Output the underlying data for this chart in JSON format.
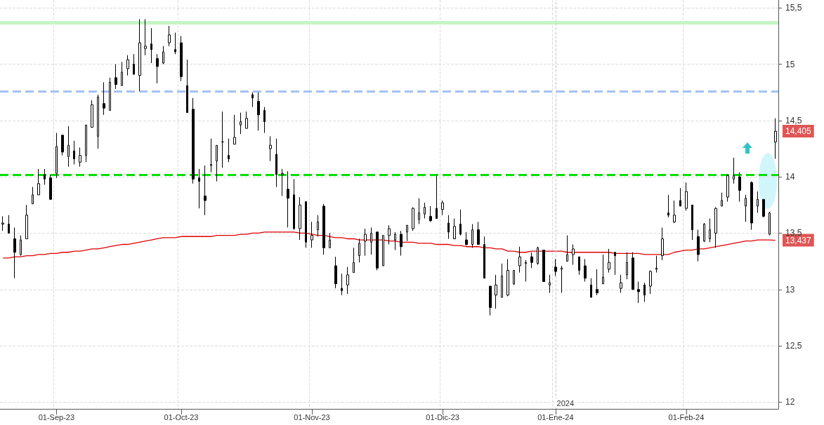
{
  "chart_data": {
    "type": "candlestick",
    "color": "#000000",
    "categories": [
      null,
      null,
      null,
      null,
      null,
      null,
      null,
      null,
      null,
      "01-Sep-23",
      null,
      null,
      null,
      null,
      null,
      null,
      null,
      null,
      null,
      null,
      null,
      null,
      null,
      null,
      null,
      null,
      null,
      null,
      null,
      null,
      "01-Oct-23",
      null,
      null,
      null,
      null,
      null,
      null,
      null,
      null,
      null,
      null,
      null,
      null,
      null,
      null,
      null,
      null,
      null,
      null,
      null,
      null,
      null,
      "01-Nov-23",
      null,
      null,
      null,
      null,
      null,
      null,
      null,
      null,
      null,
      null,
      null,
      null,
      null,
      null,
      null,
      null,
      null,
      null,
      null,
      null,
      null,
      "01-Dic-23",
      null,
      null,
      null,
      null,
      null,
      null,
      null,
      null,
      null,
      null,
      null,
      null,
      null,
      null,
      null,
      null,
      null,
      null,
      "01-Ene-24",
      null,
      null,
      null,
      null,
      null,
      null,
      null,
      null,
      null,
      null,
      null,
      null,
      null,
      null,
      null,
      null,
      null,
      null,
      null,
      null,
      null,
      "01-Feb-24",
      null,
      null,
      null,
      null,
      null,
      null,
      null,
      null,
      null,
      null,
      null,
      null,
      null,
      null,
      null
    ],
    "ohlc": [
      [
        13.58,
        13.65,
        13.52,
        13.59
      ],
      [
        13.58,
        13.66,
        13.5,
        13.5
      ],
      [
        13.45,
        13.55,
        13.1,
        13.33
      ],
      [
        13.31,
        13.48,
        13.3,
        13.44
      ],
      [
        13.45,
        13.75,
        13.45,
        13.66
      ],
      [
        13.76,
        13.91,
        13.76,
        13.84
      ],
      [
        13.84,
        14.07,
        13.84,
        13.94
      ],
      [
        14.02,
        14.07,
        13.93,
        13.98
      ],
      [
        13.99,
        14.02,
        13.8,
        13.8
      ],
      [
        14.03,
        14.39,
        13.99,
        14.27
      ],
      [
        14.37,
        14.37,
        14.19,
        14.22
      ],
      [
        14.18,
        14.45,
        14.09,
        14.28
      ],
      [
        14.23,
        14.32,
        14.11,
        14.16
      ],
      [
        14.13,
        14.26,
        14.09,
        14.19
      ],
      [
        14.19,
        14.46,
        14.13,
        14.46
      ],
      [
        14.44,
        14.68,
        14.44,
        14.64
      ],
      [
        14.36,
        14.73,
        14.25,
        14.71
      ],
      [
        14.65,
        14.84,
        14.55,
        14.61
      ],
      [
        14.59,
        14.88,
        14.59,
        14.84
      ],
      [
        14.88,
        15.0,
        14.78,
        14.82
      ],
      [
        14.81,
        15.02,
        14.81,
        14.93
      ],
      [
        14.96,
        15.08,
        14.9,
        15.04
      ],
      [
        15.0,
        15.09,
        14.91,
        14.91
      ],
      [
        14.9,
        15.4,
        14.76,
        15.19
      ],
      [
        15.14,
        15.4,
        15.08,
        15.16
      ],
      [
        15.18,
        15.32,
        15.01,
        15.13
      ],
      [
        15.05,
        15.09,
        14.83,
        14.98
      ],
      [
        15.01,
        15.16,
        15.0,
        15.11
      ],
      [
        15.19,
        15.34,
        15.16,
        15.26
      ],
      [
        15.13,
        15.28,
        15.09,
        15.11
      ],
      [
        15.19,
        15.25,
        14.85,
        14.89
      ],
      [
        14.81,
        15.04,
        14.57,
        14.57
      ],
      [
        14.6,
        14.7,
        13.94,
        13.98
      ],
      [
        13.99,
        14.07,
        13.72,
        13.96
      ],
      [
        13.83,
        14.1,
        13.66,
        13.79
      ],
      [
        14.1,
        14.34,
        14.04,
        14.11
      ],
      [
        14.14,
        14.28,
        13.96,
        14.28
      ],
      [
        14.31,
        14.58,
        14.08,
        14.31
      ],
      [
        14.19,
        14.34,
        14.13,
        14.16
      ],
      [
        14.29,
        14.55,
        14.29,
        14.35
      ],
      [
        14.46,
        14.57,
        14.38,
        14.49
      ],
      [
        14.43,
        14.58,
        14.43,
        14.52
      ],
      [
        14.73,
        14.75,
        14.62,
        14.7
      ],
      [
        14.67,
        14.75,
        14.41,
        14.55
      ],
      [
        14.59,
        14.62,
        14.39,
        14.49
      ],
      [
        14.25,
        14.36,
        14.14,
        14.28
      ],
      [
        14.2,
        14.34,
        13.91,
        14.02
      ],
      [
        14.02,
        14.07,
        13.83,
        14.03
      ],
      [
        13.89,
        14.05,
        13.55,
        13.81
      ],
      [
        13.84,
        13.98,
        13.53,
        13.54
      ],
      [
        13.54,
        13.82,
        13.44,
        13.75
      ],
      [
        13.78,
        13.78,
        13.37,
        13.42
      ],
      [
        13.44,
        13.6,
        13.37,
        13.48
      ],
      [
        13.53,
        13.66,
        13.47,
        13.6
      ],
      [
        13.74,
        13.76,
        13.31,
        13.37
      ],
      [
        13.37,
        13.5,
        13.37,
        13.44
      ],
      [
        13.21,
        13.29,
        13.01,
        13.05
      ],
      [
        13.01,
        13.14,
        12.95,
        12.99
      ],
      [
        13.04,
        13.2,
        12.96,
        13.13
      ],
      [
        13.15,
        13.37,
        13.15,
        13.24
      ],
      [
        13.3,
        13.45,
        13.24,
        13.41
      ],
      [
        13.43,
        13.54,
        13.3,
        13.49
      ],
      [
        13.42,
        13.55,
        13.31,
        13.5
      ],
      [
        13.51,
        13.51,
        13.17,
        13.19
      ],
      [
        13.21,
        13.48,
        13.21,
        13.48
      ],
      [
        13.48,
        13.57,
        13.4,
        13.54
      ],
      [
        13.44,
        13.51,
        13.35,
        13.49
      ],
      [
        13.49,
        13.52,
        13.3,
        13.38
      ],
      [
        13.51,
        13.57,
        13.43,
        13.57
      ],
      [
        13.54,
        13.73,
        13.52,
        13.72
      ],
      [
        13.62,
        13.81,
        13.58,
        13.68
      ],
      [
        13.67,
        13.77,
        13.63,
        13.73
      ],
      [
        13.65,
        13.74,
        13.6,
        13.61
      ],
      [
        13.72,
        14.01,
        13.63,
        13.63
      ],
      [
        13.71,
        13.79,
        13.66,
        13.77
      ],
      [
        13.59,
        13.66,
        13.45,
        13.51
      ],
      [
        13.45,
        13.63,
        13.45,
        13.56
      ],
      [
        13.58,
        13.71,
        13.48,
        13.49
      ],
      [
        13.44,
        13.51,
        13.39,
        13.4
      ],
      [
        13.4,
        13.58,
        13.37,
        13.53
      ],
      [
        13.53,
        13.6,
        13.4,
        13.4
      ],
      [
        13.4,
        13.47,
        13.1,
        13.1
      ],
      [
        13.03,
        13.03,
        12.77,
        12.84
      ],
      [
        12.95,
        13.13,
        12.83,
        13.04
      ],
      [
        12.93,
        13.23,
        12.93,
        13.12
      ],
      [
        12.95,
        13.27,
        12.94,
        13.17
      ],
      [
        13.05,
        13.17,
        13.04,
        13.17
      ],
      [
        13.21,
        13.38,
        13.15,
        13.29
      ],
      [
        13.23,
        13.26,
        13.07,
        13.24
      ],
      [
        13.29,
        13.33,
        13.19,
        13.24
      ],
      [
        13.23,
        13.38,
        13.22,
        13.37
      ],
      [
        13.35,
        13.35,
        13.07,
        13.07
      ],
      [
        13.04,
        13.13,
        12.97,
        13.06
      ],
      [
        13.2,
        13.27,
        13.12,
        13.16
      ],
      [
        13.18,
        13.21,
        12.97,
        13.19
      ],
      [
        13.25,
        13.48,
        13.25,
        13.31
      ],
      [
        13.31,
        13.4,
        13.22,
        13.36
      ],
      [
        13.29,
        13.29,
        13.13,
        13.17
      ],
      [
        13.21,
        13.27,
        13.07,
        13.1
      ],
      [
        13.04,
        13.1,
        12.93,
        12.93
      ],
      [
        13.0,
        13.18,
        12.95,
        12.97
      ],
      [
        13.05,
        13.31,
        13.05,
        13.11
      ],
      [
        13.18,
        13.36,
        13.15,
        13.24
      ],
      [
        13.33,
        13.33,
        13.13,
        13.3
      ],
      [
        13.01,
        13.13,
        12.97,
        13.06
      ],
      [
        13.13,
        13.33,
        13.09,
        13.24
      ],
      [
        13.28,
        13.33,
        13.0,
        13.0
      ],
      [
        13.0,
        13.07,
        12.88,
        12.98
      ],
      [
        13.04,
        13.06,
        12.89,
        12.95
      ],
      [
        13.03,
        13.17,
        12.96,
        13.16
      ],
      [
        13.18,
        13.3,
        13.15,
        13.19
      ],
      [
        13.3,
        13.55,
        13.26,
        13.45
      ],
      [
        13.68,
        13.84,
        13.64,
        13.66
      ],
      [
        13.6,
        13.79,
        13.59,
        13.66
      ],
      [
        13.79,
        13.9,
        13.74,
        13.74
      ],
      [
        13.72,
        13.95,
        13.7,
        13.87
      ],
      [
        13.75,
        13.75,
        13.44,
        13.53
      ],
      [
        13.47,
        13.53,
        13.25,
        13.31
      ],
      [
        13.43,
        13.59,
        13.42,
        13.58
      ],
      [
        13.45,
        13.63,
        13.42,
        13.53
      ],
      [
        13.5,
        13.73,
        13.37,
        13.72
      ],
      [
        13.74,
        13.86,
        13.74,
        13.79
      ],
      [
        13.82,
        14.02,
        13.78,
        14.01
      ],
      [
        13.98,
        14.17,
        13.94,
        14.01
      ],
      [
        14.0,
        14.04,
        13.78,
        13.88
      ],
      [
        13.74,
        13.84,
        13.6,
        13.81
      ],
      [
        13.95,
        13.96,
        13.53,
        13.59
      ],
      [
        13.74,
        13.87,
        13.68,
        13.8
      ],
      [
        13.8,
        13.8,
        13.64,
        13.65
      ],
      [
        13.49,
        13.69,
        13.48,
        13.68
      ],
      [
        14.31,
        14.52,
        14.16,
        14.405
      ]
    ],
    "series": [
      {
        "type": "line",
        "color": "#e00000",
        "values": [
          13.28,
          13.28,
          13.29,
          13.29,
          13.3,
          13.3,
          13.31,
          13.31,
          13.32,
          13.32,
          13.33,
          13.33,
          13.34,
          13.34,
          13.35,
          13.36,
          13.36,
          13.37,
          13.38,
          13.39,
          13.4,
          13.4,
          13.41,
          13.42,
          13.43,
          13.44,
          13.45,
          13.46,
          13.46,
          13.46,
          13.47,
          13.47,
          13.47,
          13.47,
          13.47,
          13.47,
          13.48,
          13.48,
          13.48,
          13.48,
          13.49,
          13.49,
          13.5,
          13.5,
          13.51,
          13.51,
          13.51,
          13.51,
          13.51,
          13.51,
          13.5,
          13.5,
          13.49,
          13.48,
          13.48,
          13.47,
          13.46,
          13.46,
          13.45,
          13.45,
          13.44,
          13.44,
          13.44,
          13.44,
          13.44,
          13.43,
          13.43,
          13.42,
          13.42,
          13.42,
          13.41,
          13.41,
          13.41,
          13.4,
          13.4,
          13.4,
          13.39,
          13.39,
          13.38,
          13.38,
          13.38,
          13.37,
          13.37,
          13.36,
          13.36,
          13.34,
          13.34,
          13.33,
          13.33,
          13.34,
          13.34,
          13.34,
          13.34,
          13.34,
          13.34,
          13.33,
          13.33,
          13.33,
          13.33,
          13.33,
          13.33,
          13.33,
          13.33,
          13.32,
          13.32,
          13.32,
          13.32,
          13.32,
          13.31,
          13.31,
          13.31,
          13.31,
          13.31,
          13.33,
          13.34,
          13.35,
          13.35,
          13.36,
          13.36,
          13.37,
          13.38,
          13.39,
          13.4,
          13.41,
          13.42,
          13.43,
          13.43,
          13.44,
          13.44,
          13.44,
          13.437
        ]
      }
    ],
    "ylim": [
      11.94,
      15.57
    ],
    "yticks": [
      12,
      {
        "value": 12.5,
        "label": "12,5"
      },
      13,
      {
        "value": 13.5,
        "label": "13,5"
      },
      14,
      {
        "value": 14.5,
        "label": "14,5"
      },
      15,
      {
        "value": 15.5,
        "label": "15,5"
      }
    ],
    "grid": true,
    "ref_lines": [
      {
        "axis": "y",
        "value": 15.37,
        "color": "#c4f5c4",
        "line_style": "solid"
      },
      {
        "axis": "y",
        "value": 14.76,
        "color": "#a4c2f4",
        "line_style": "dashed"
      },
      {
        "axis": "y",
        "value": 14.02,
        "color": "#00e000",
        "line_style": "dashed"
      },
      {
        "axis": "x",
        "value": "01-Ene-24",
        "label": "2024",
        "color": "#c8c8c8",
        "line_style": "dashed"
      }
    ],
    "annotations": [
      "14,405",
      "13,437"
    ]
  }
}
